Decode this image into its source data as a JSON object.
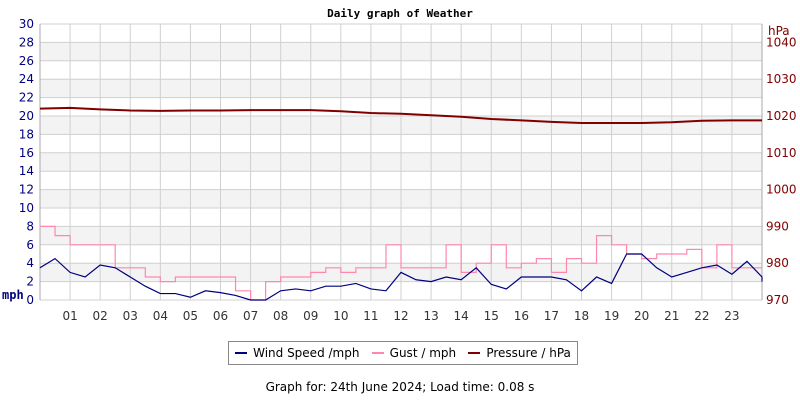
{
  "chart_data": {
    "type": "line",
    "title": "Daily graph of Weather",
    "ylabel_left": "mph",
    "ylabel_right": "hPa",
    "ylim_left": [
      0,
      30
    ],
    "ylim_right": [
      970,
      1045
    ],
    "yticks_left": [
      0,
      2,
      4,
      6,
      8,
      10,
      12,
      14,
      16,
      18,
      20,
      22,
      24,
      26,
      28,
      30
    ],
    "yticks_right": [
      970,
      980,
      990,
      1000,
      1010,
      1020,
      1030,
      1040
    ],
    "xticks": [
      "01",
      "02",
      "03",
      "04",
      "05",
      "06",
      "07",
      "08",
      "09",
      "10",
      "11",
      "12",
      "13",
      "14",
      "15",
      "16",
      "17",
      "18",
      "19",
      "20",
      "21",
      "22",
      "23"
    ],
    "xlim_hours": [
      0,
      24
    ],
    "grid": true,
    "legend_placement": "bottom",
    "colors": {
      "wind": "#000080",
      "gust": "#ff88aa",
      "pressure": "#800000",
      "band": "#f3f3f3",
      "grid": "#d0d0d0"
    },
    "series": [
      {
        "name": "Wind Speed /mph",
        "axis": "left",
        "step_hours": 0.5,
        "values": [
          3.5,
          4.5,
          3,
          2.5,
          3.8,
          3.5,
          2.5,
          1.5,
          0.7,
          0.7,
          0.3,
          1,
          0.8,
          0.5,
          0,
          0,
          1,
          1.2,
          1,
          1.5,
          1.5,
          1.8,
          1.2,
          1,
          3,
          2.2,
          2,
          2.5,
          2.2,
          3.5,
          1.7,
          1.2,
          2.5,
          2.5,
          2.5,
          2.2,
          1,
          2.5,
          1.8,
          5,
          5,
          3.5,
          2.5,
          3,
          3.5,
          3.8,
          2.8,
          4.2,
          2.5,
          2
        ]
      },
      {
        "name": "Gust / mph",
        "axis": "left",
        "step_hours": 0.5,
        "values": [
          8,
          7,
          6,
          6,
          6,
          3.5,
          3.5,
          2.5,
          2,
          2.5,
          2.5,
          2.5,
          2.5,
          1,
          0,
          2,
          2.5,
          2.5,
          3,
          3.5,
          3,
          3.5,
          3.5,
          6,
          3.5,
          3.5,
          3.5,
          6,
          3,
          4,
          6,
          3.5,
          4,
          4.5,
          3,
          4.5,
          4,
          7,
          6,
          5,
          4.5,
          5,
          5,
          5.5,
          3.5,
          6,
          3.5,
          3.5
        ]
      },
      {
        "name": "Pressure / hPa",
        "axis": "right",
        "step_hours": 1,
        "values": [
          1022,
          1022.2,
          1021.8,
          1021.5,
          1021.4,
          1021.5,
          1021.5,
          1021.6,
          1021.6,
          1021.6,
          1021.3,
          1020.8,
          1020.6,
          1020.2,
          1019.8,
          1019.2,
          1018.8,
          1018.4,
          1018.1,
          1018.1,
          1018.1,
          1018.3,
          1018.7,
          1018.8,
          1018.8
        ]
      }
    ]
  },
  "footer": "Graph for: 24th June 2024; Load time: 0.08 s"
}
